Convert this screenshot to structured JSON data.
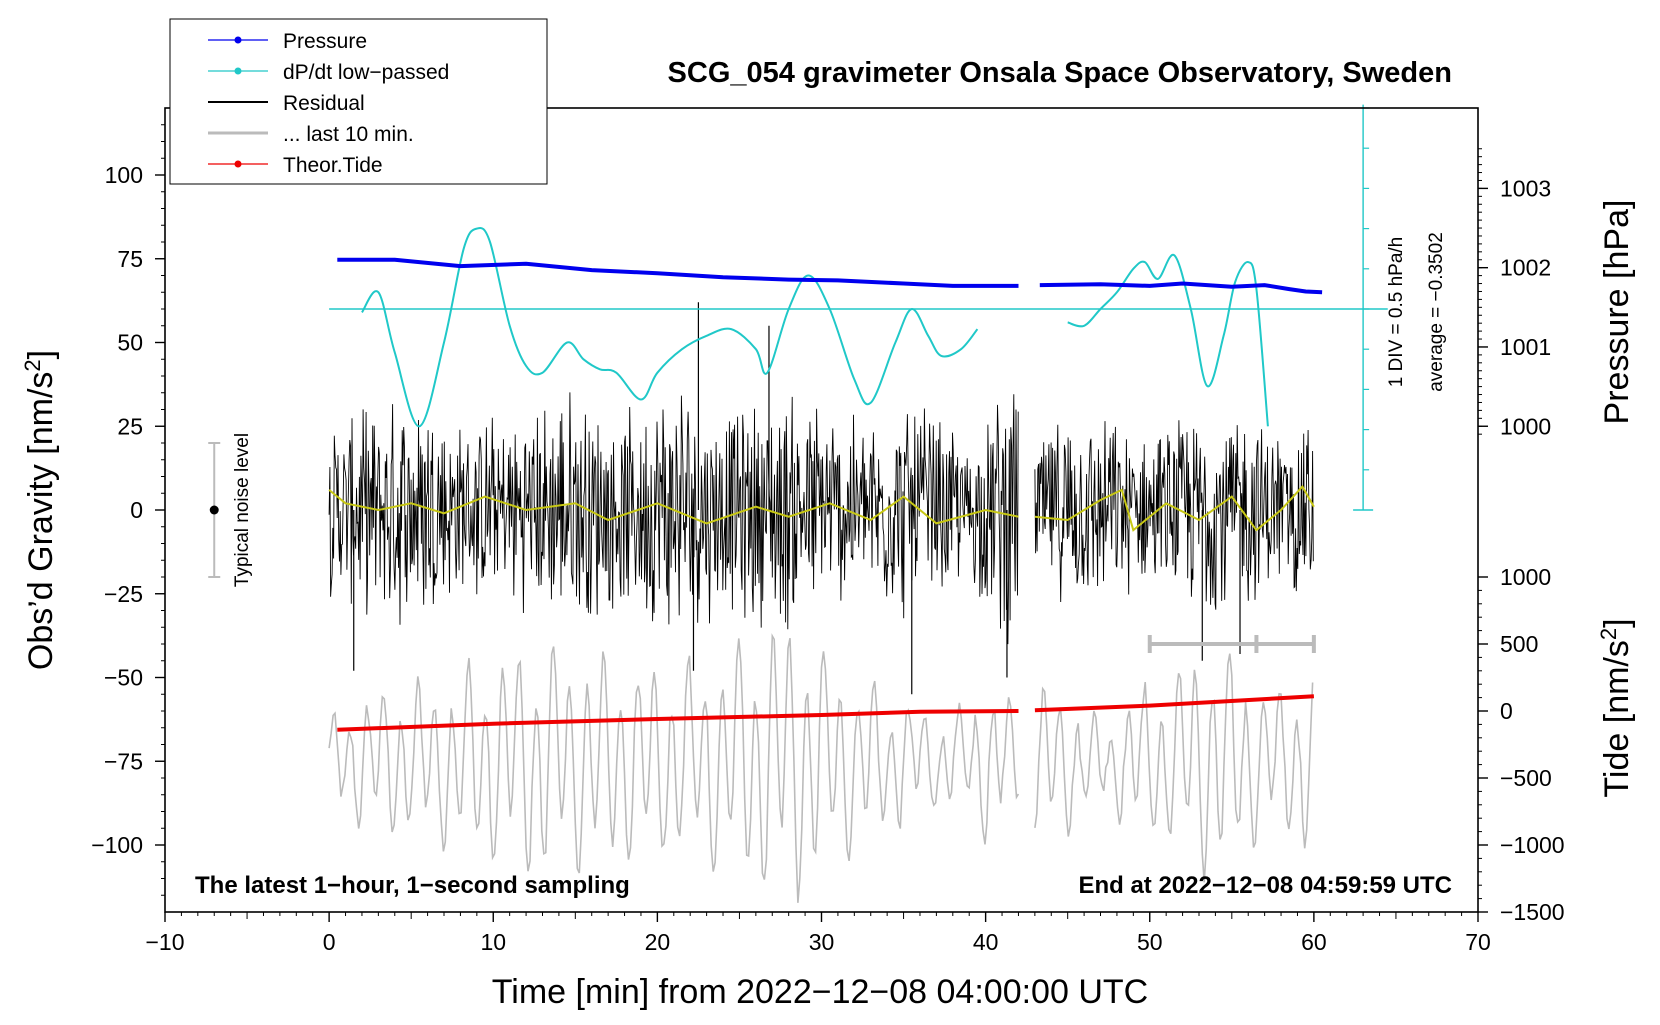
{
  "chart_data": {
    "type": "line",
    "title": "SCG_054 gravimeter Onsala Space Observatory, Sweden",
    "xlabel": "Time [min] from 2022−12−08 04:00:00 UTC",
    "ylabel_left": "Obs’d Gravity [nm/s²]",
    "ylabel_left_main": "Obs’d Gravity [nm/s",
    "ylabel_left_sup": "2",
    "ylabel_left_close": "]",
    "ylabel_right_pressure": "Pressure [hPa]",
    "ylabel_right_tide": "Tide [nm/s²]",
    "ylabel_right_tide_main": "Tide [nm/s",
    "ylabel_right_tide_sup": "2",
    "ylabel_right_tide_close": "]",
    "xlim": [
      -10,
      70
    ],
    "ylim": [
      -120,
      120
    ],
    "xticks": [
      -10,
      0,
      10,
      20,
      30,
      40,
      50,
      60,
      70
    ],
    "xtick_labels": [
      "−10",
      "0",
      "10",
      "20",
      "30",
      "40",
      "50",
      "60",
      "70"
    ],
    "yticks": [
      -100,
      -75,
      -50,
      -25,
      0,
      25,
      50,
      75,
      100
    ],
    "ytick_labels": [
      "−100",
      "−75",
      "−50",
      "−25",
      "0",
      "25",
      "50",
      "75",
      "100"
    ],
    "pressure_axis": {
      "gravity_equiv": [
        [
          1000,
          25
        ],
        [
          1003,
          96
        ]
      ],
      "ticks": [
        1000,
        1001,
        1002,
        1003
      ],
      "tick_labels": [
        "1000",
        "1001",
        "1002",
        "1003"
      ]
    },
    "tide_axis": {
      "gravity_equiv": [
        [
          -1500,
          -120
        ],
        [
          1000,
          -20
        ]
      ],
      "ticks": [
        -1500,
        -1000,
        -500,
        0,
        500,
        1000
      ],
      "tick_labels": [
        "−1500",
        "−1000",
        "−500",
        "0",
        "500",
        "1000"
      ]
    },
    "dpdt_axis": {
      "x": 63,
      "zero_gravity": 0,
      "top_gravity": 121,
      "reference_gravity": 60,
      "div_label": "1 DIV = 0.5 hPa/h",
      "average_label": "average = −0.3502"
    },
    "legend": [
      {
        "label": "Pressure",
        "color": "#0000ee",
        "marker": true
      },
      {
        "label": "dP/dt low−passed",
        "color": "#20c8c8",
        "marker": true
      },
      {
        "label": "Residual",
        "color": "#000000",
        "marker": false
      },
      {
        "label": "... last 10 min.",
        "color": "#bbbbbb",
        "marker": false
      },
      {
        "label": "Theor.Tide",
        "color": "#ee0000",
        "marker": true
      }
    ],
    "noise_level": {
      "label": "Typical noise level",
      "x": -7,
      "center": 0,
      "half_range": 20
    },
    "last10_marker": {
      "x_start": 50,
      "x_end": 60,
      "y": -40
    },
    "gap_minutes": [
      42.2,
      43.2
    ],
    "series": [
      {
        "name": "Pressure",
        "unit": "hPa",
        "color": "#0000ee",
        "points": [
          [
            0.5,
            1002.1
          ],
          [
            4,
            1002.1
          ],
          [
            8,
            1002.02
          ],
          [
            12,
            1002.05
          ],
          [
            16,
            1001.97
          ],
          [
            20,
            1001.93
          ],
          [
            24,
            1001.88
          ],
          [
            28,
            1001.85
          ],
          [
            31,
            1001.84
          ],
          [
            35,
            1001.8
          ],
          [
            38,
            1001.77
          ],
          [
            42,
            1001.77
          ],
          null,
          [
            43.3,
            1001.78
          ],
          [
            47,
            1001.79
          ],
          [
            50,
            1001.77
          ],
          [
            52,
            1001.8
          ],
          [
            55,
            1001.76
          ],
          [
            57,
            1001.78
          ],
          [
            58.5,
            1001.73
          ],
          [
            59.5,
            1001.7
          ],
          [
            60.5,
            1001.69
          ]
        ]
      },
      {
        "name": "dP/dt low−passed",
        "unit": "gravity-equivalent divisions",
        "color": "#20c8c8",
        "points": [
          [
            2,
            59
          ],
          [
            3,
            65
          ],
          [
            4,
            47
          ],
          [
            5.5,
            25
          ],
          [
            7,
            50
          ],
          [
            8.2,
            78
          ],
          [
            9,
            84
          ],
          [
            9.8,
            80
          ],
          [
            11,
            55
          ],
          [
            12,
            43
          ],
          [
            13,
            41
          ],
          [
            14.5,
            50
          ],
          [
            15.5,
            45
          ],
          [
            16.5,
            42
          ],
          [
            17.5,
            41
          ],
          [
            19,
            33
          ],
          [
            20,
            41
          ],
          [
            21.5,
            48
          ],
          [
            23,
            52
          ],
          [
            24.5,
            54
          ],
          [
            26,
            48
          ],
          [
            26.7,
            41
          ],
          [
            28,
            60
          ],
          [
            29.2,
            70
          ],
          [
            30.5,
            60
          ],
          [
            32,
            39
          ],
          [
            33,
            32
          ],
          [
            34.5,
            50
          ],
          [
            35.5,
            60
          ],
          [
            36.5,
            52
          ],
          [
            37.3,
            46
          ],
          [
            38.5,
            48
          ],
          [
            39.5,
            54
          ],
          null,
          [
            45,
            56
          ],
          [
            46,
            55
          ],
          [
            47,
            60
          ],
          [
            48,
            65
          ],
          [
            49,
            72
          ],
          [
            49.7,
            74
          ],
          [
            50.5,
            69
          ],
          [
            51.5,
            76
          ],
          [
            52.5,
            60
          ],
          [
            53.5,
            37
          ],
          [
            54.5,
            52
          ],
          [
            55.2,
            68
          ],
          [
            56,
            74
          ],
          [
            56.5,
            66
          ],
          [
            57.2,
            25
          ]
        ]
      },
      {
        "name": "Residual",
        "unit": "nm/s²",
        "color": "#000000",
        "segments": [
          [
            0,
            42
          ],
          [
            43,
            60
          ]
        ],
        "envelope": [
          [
            0,
            28
          ],
          [
            6,
            40
          ],
          [
            8,
            28
          ],
          [
            12,
            32
          ],
          [
            15,
            40
          ],
          [
            18,
            30
          ],
          [
            21,
            44
          ],
          [
            24,
            32
          ],
          [
            28,
            40
          ],
          [
            32,
            30
          ],
          [
            36,
            36
          ],
          [
            39,
            22
          ],
          [
            41.5,
            46
          ],
          [
            43,
            26
          ],
          [
            46,
            32
          ],
          [
            50,
            24
          ],
          [
            54,
            36
          ],
          [
            58,
            26
          ],
          [
            60,
            30
          ]
        ],
        "spikes": [
          [
            22.5,
            62
          ],
          [
            22.2,
            -48
          ],
          [
            26.8,
            55
          ],
          [
            35.5,
            -55
          ],
          [
            41.3,
            -50
          ],
          [
            53.2,
            -45
          ],
          [
            1.5,
            -48
          ],
          [
            55.5,
            -43
          ]
        ]
      },
      {
        "name": "... last 10 min.",
        "unit": "nm/s² (display offset −75)",
        "color": "#bbbbbb",
        "offset": -75,
        "segments": [
          [
            0,
            42
          ],
          [
            43,
            60
          ]
        ],
        "envelope": [
          [
            0,
            12
          ],
          [
            2,
            20
          ],
          [
            8,
            28
          ],
          [
            13,
            40
          ],
          [
            16,
            34
          ],
          [
            20,
            30
          ],
          [
            24,
            34
          ],
          [
            28,
            46
          ],
          [
            31,
            30
          ],
          [
            35,
            20
          ],
          [
            38,
            12
          ],
          [
            40,
            26
          ],
          [
            42,
            14
          ],
          [
            44,
            26
          ],
          [
            47,
            12
          ],
          [
            50,
            24
          ],
          [
            54,
            40
          ],
          [
            57,
            22
          ],
          [
            60,
            30
          ]
        ]
      },
      {
        "name": "Residual low−passed",
        "unit": "nm/s²",
        "color": "#c8c814",
        "points": [
          [
            0,
            6
          ],
          [
            1,
            2
          ],
          [
            3,
            0
          ],
          [
            5,
            2
          ],
          [
            7,
            -1
          ],
          [
            9.5,
            4
          ],
          [
            12,
            0
          ],
          [
            15,
            2
          ],
          [
            17,
            -3
          ],
          [
            20,
            2
          ],
          [
            23,
            -4
          ],
          [
            26,
            1
          ],
          [
            28,
            -2
          ],
          [
            30.5,
            2
          ],
          [
            33,
            -3
          ],
          [
            35,
            4
          ],
          [
            37,
            -4
          ],
          [
            40,
            0
          ],
          [
            42,
            -2
          ],
          null,
          [
            43,
            -2
          ],
          [
            45,
            -3
          ],
          [
            47,
            3
          ],
          [
            48.3,
            6
          ],
          [
            49,
            -6
          ],
          [
            51,
            2
          ],
          [
            53,
            -3
          ],
          [
            55,
            4
          ],
          [
            56.5,
            -6
          ],
          [
            58,
            0
          ],
          [
            59.3,
            7
          ],
          [
            60,
            1
          ]
        ]
      },
      {
        "name": "Theor.Tide",
        "unit": "nm/s²",
        "color": "#ee0000",
        "points": [
          [
            0.5,
            -140
          ],
          [
            10,
            -95
          ],
          [
            20,
            -60
          ],
          [
            30,
            -30
          ],
          [
            36,
            -5
          ],
          [
            42,
            0
          ],
          null,
          [
            43,
            5
          ],
          [
            50,
            40
          ],
          [
            60,
            110
          ]
        ]
      }
    ],
    "annotations": {
      "bottom_left": "The latest 1−hour, 1−second sampling",
      "bottom_right": "End at 2022−12−08 04:59:59 UTC"
    }
  },
  "colors": {
    "pressure": "#0000ee",
    "dpdt": "#20c8c8",
    "residual": "#000000",
    "last10": "#bbbbbb",
    "tide": "#ee0000",
    "residual_lowpass": "#c8c814",
    "axis": "#000000"
  }
}
